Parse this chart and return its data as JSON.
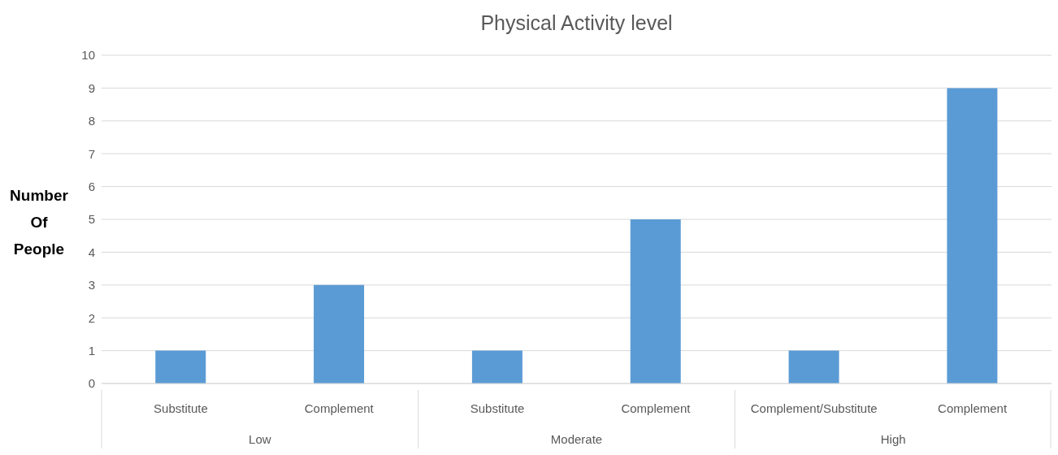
{
  "chart_data": {
    "type": "bar",
    "title": "Physical Activity level",
    "ylabel": "Number Of People",
    "categories": [
      "Substitute",
      "Complement",
      "Substitute",
      "Complement",
      "Complement/Substitute",
      "Complement"
    ],
    "values": [
      1,
      3,
      1,
      5,
      1,
      9
    ],
    "color": "#5b9bd5",
    "ylim": [
      0,
      10
    ],
    "yticks": [
      0,
      1,
      2,
      3,
      4,
      5,
      6,
      7,
      8,
      9,
      10
    ],
    "grid": "y",
    "annotations": [
      "Low",
      "Moderate",
      "High"
    ]
  }
}
